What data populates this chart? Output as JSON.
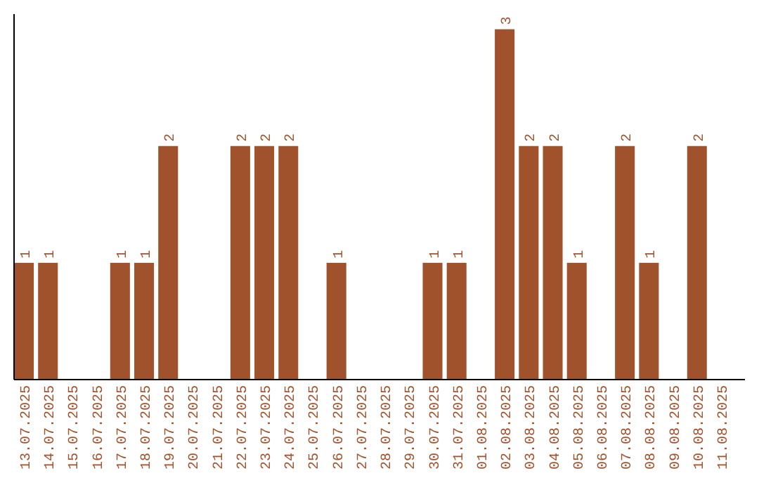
{
  "chart_data": {
    "type": "bar",
    "categories": [
      "13.07.2025",
      "14.07.2025",
      "15.07.2025",
      "16.07.2025",
      "17.07.2025",
      "18.07.2025",
      "19.07.2025",
      "20.07.2025",
      "21.07.2025",
      "22.07.2025",
      "23.07.2025",
      "24.07.2025",
      "25.07.2025",
      "26.07.2025",
      "27.07.2025",
      "28.07.2025",
      "29.07.2025",
      "30.07.2025",
      "31.07.2025",
      "01.08.2025",
      "02.08.2025",
      "03.08.2025",
      "04.08.2025",
      "05.08.2025",
      "06.08.2025",
      "07.08.2025",
      "08.08.2025",
      "09.08.2025",
      "10.08.2025",
      "11.08.2025"
    ],
    "values": [
      1,
      1,
      0,
      0,
      1,
      1,
      2,
      0,
      0,
      2,
      2,
      2,
      0,
      1,
      0,
      0,
      0,
      1,
      1,
      0,
      3,
      2,
      2,
      1,
      0,
      2,
      1,
      0,
      2,
      0
    ],
    "value_labels": [
      "1",
      "1",
      null,
      null,
      "1",
      "1",
      "2",
      null,
      null,
      "2",
      "2",
      "2",
      null,
      "1",
      null,
      null,
      null,
      "1",
      "1",
      null,
      "3",
      "2",
      "2",
      "1",
      null,
      "2",
      "1",
      null,
      "2",
      null
    ],
    "color": "#a0522d",
    "ylim": [
      0,
      3.13
    ],
    "tick_labels": "x"
  }
}
